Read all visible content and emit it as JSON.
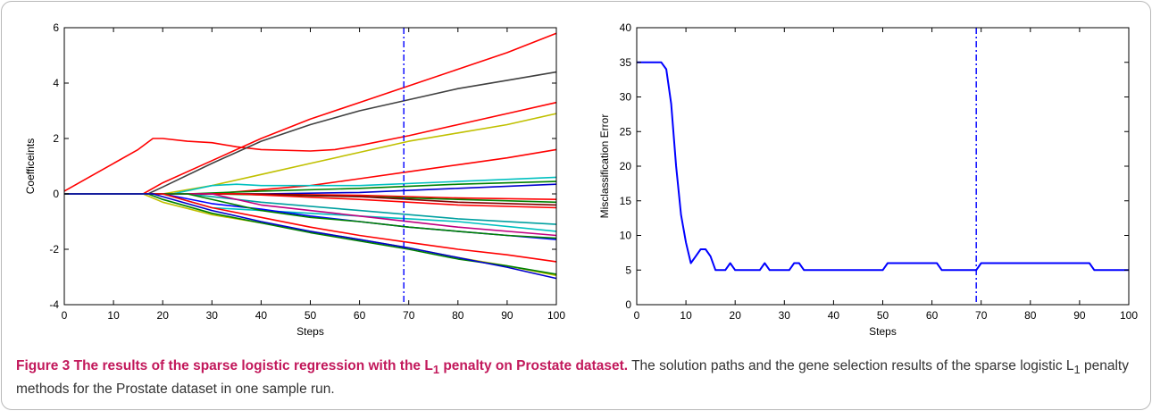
{
  "caption": {
    "title_pre": "Figure 3 The results of the sparse logistic regression with the L",
    "title_sub": "1",
    "title_post": " penalty on Prostate dataset.",
    "body_pre": " The solution paths and the gene selection results of the sparse logistic L",
    "body_sub": "1",
    "body_post": " penalty methods for the Prostate dataset in one sample run."
  },
  "chart_data": [
    {
      "type": "line",
      "title": "",
      "xlabel": "Steps",
      "ylabel": "Coefficeints",
      "xlim": [
        0,
        100
      ],
      "ylim": [
        -4,
        6
      ],
      "xticks": [
        0,
        10,
        20,
        30,
        40,
        50,
        60,
        70,
        80,
        90,
        100
      ],
      "yticks": [
        -4,
        -2,
        0,
        2,
        4,
        6
      ],
      "grid": false,
      "legend": "none",
      "vline": {
        "x": 69,
        "color": "#0000ff",
        "style": "dash-dot"
      },
      "series": [
        {
          "color": "#ff0000",
          "points": [
            [
              0,
              0.1
            ],
            [
              5,
              0.6
            ],
            [
              10,
              1.1
            ],
            [
              15,
              1.6
            ],
            [
              18,
              2.0
            ],
            [
              20,
              2.0
            ],
            [
              25,
              1.9
            ],
            [
              30,
              1.85
            ],
            [
              35,
              1.7
            ],
            [
              40,
              1.6
            ],
            [
              50,
              1.55
            ],
            [
              55,
              1.6
            ],
            [
              60,
              1.75
            ],
            [
              70,
              2.1
            ],
            [
              80,
              2.5
            ],
            [
              90,
              2.9
            ],
            [
              100,
              3.3
            ]
          ]
        },
        {
          "color": "#ff0000",
          "points": [
            [
              0,
              0
            ],
            [
              16,
              0
            ],
            [
              20,
              0.4
            ],
            [
              30,
              1.2
            ],
            [
              40,
              2.0
            ],
            [
              50,
              2.7
            ],
            [
              60,
              3.3
            ],
            [
              70,
              3.9
            ],
            [
              80,
              4.5
            ],
            [
              90,
              5.1
            ],
            [
              100,
              5.8
            ]
          ]
        },
        {
          "color": "#404040",
          "points": [
            [
              0,
              0
            ],
            [
              17,
              0
            ],
            [
              20,
              0.25
            ],
            [
              30,
              1.1
            ],
            [
              40,
              1.9
            ],
            [
              50,
              2.5
            ],
            [
              60,
              3.0
            ],
            [
              70,
              3.4
            ],
            [
              80,
              3.8
            ],
            [
              90,
              4.1
            ],
            [
              100,
              4.4
            ]
          ]
        },
        {
          "color": "#c0c000",
          "points": [
            [
              0,
              0
            ],
            [
              20,
              0
            ],
            [
              30,
              0.3
            ],
            [
              40,
              0.7
            ],
            [
              50,
              1.1
            ],
            [
              60,
              1.5
            ],
            [
              70,
              1.9
            ],
            [
              80,
              2.2
            ],
            [
              90,
              2.5
            ],
            [
              100,
              2.9
            ]
          ]
        },
        {
          "color": "#ff0000",
          "points": [
            [
              0,
              0
            ],
            [
              30,
              0
            ],
            [
              40,
              0.15
            ],
            [
              50,
              0.3
            ],
            [
              60,
              0.55
            ],
            [
              70,
              0.8
            ],
            [
              80,
              1.05
            ],
            [
              90,
              1.3
            ],
            [
              100,
              1.6
            ]
          ]
        },
        {
          "color": "#00c0c0",
          "points": [
            [
              0,
              0
            ],
            [
              22,
              0
            ],
            [
              30,
              0.3
            ],
            [
              35,
              0.35
            ],
            [
              40,
              0.3
            ],
            [
              60,
              0.3
            ],
            [
              80,
              0.45
            ],
            [
              100,
              0.6
            ]
          ]
        },
        {
          "color": "#008000",
          "points": [
            [
              0,
              0
            ],
            [
              25,
              0
            ],
            [
              40,
              0.1
            ],
            [
              60,
              0.2
            ],
            [
              80,
              0.35
            ],
            [
              100,
              0.45
            ]
          ]
        },
        {
          "color": "#0000cc",
          "points": [
            [
              0,
              0
            ],
            [
              40,
              0
            ],
            [
              60,
              0.05
            ],
            [
              80,
              0.2
            ],
            [
              100,
              0.35
            ]
          ]
        },
        {
          "color": "#ff0000",
          "points": [
            [
              0,
              0
            ],
            [
              35,
              0
            ],
            [
              60,
              -0.05
            ],
            [
              80,
              -0.15
            ],
            [
              100,
              -0.2
            ]
          ]
        },
        {
          "color": "#008000",
          "points": [
            [
              0,
              0
            ],
            [
              30,
              0
            ],
            [
              60,
              -0.1
            ],
            [
              80,
              -0.2
            ],
            [
              100,
              -0.3
            ]
          ]
        },
        {
          "color": "#800000",
          "points": [
            [
              0,
              0
            ],
            [
              40,
              0
            ],
            [
              60,
              -0.1
            ],
            [
              80,
              -0.3
            ],
            [
              100,
              -0.4
            ]
          ]
        },
        {
          "color": "#ff0000",
          "points": [
            [
              0,
              0
            ],
            [
              35,
              0
            ],
            [
              60,
              -0.2
            ],
            [
              80,
              -0.4
            ],
            [
              100,
              -0.5
            ]
          ]
        },
        {
          "color": "#00a0a0",
          "points": [
            [
              0,
              0
            ],
            [
              25,
              0
            ],
            [
              40,
              -0.3
            ],
            [
              60,
              -0.6
            ],
            [
              80,
              -0.9
            ],
            [
              100,
              -1.1
            ]
          ]
        },
        {
          "color": "#00c0c0",
          "points": [
            [
              0,
              0
            ],
            [
              20,
              0
            ],
            [
              30,
              -0.5
            ],
            [
              40,
              -0.6
            ],
            [
              60,
              -0.8
            ],
            [
              80,
              -1.0
            ],
            [
              100,
              -1.35
            ]
          ]
        },
        {
          "color": "#c00080",
          "points": [
            [
              0,
              0
            ],
            [
              30,
              0
            ],
            [
              40,
              -0.4
            ],
            [
              60,
              -0.8
            ],
            [
              80,
              -1.2
            ],
            [
              100,
              -1.5
            ]
          ]
        },
        {
          "color": "#0000ff",
          "points": [
            [
              0,
              0
            ],
            [
              20,
              0
            ],
            [
              30,
              -0.35
            ],
            [
              40,
              -0.55
            ],
            [
              50,
              -0.8
            ],
            [
              60,
              -1.0
            ],
            [
              70,
              -1.2
            ],
            [
              80,
              -1.35
            ],
            [
              90,
              -1.5
            ],
            [
              100,
              -1.65
            ]
          ]
        },
        {
          "color": "#008000",
          "points": [
            [
              0,
              0
            ],
            [
              25,
              0
            ],
            [
              40,
              -0.6
            ],
            [
              50,
              -0.85
            ],
            [
              60,
              -1.0
            ],
            [
              70,
              -1.2
            ],
            [
              80,
              -1.35
            ],
            [
              90,
              -1.5
            ],
            [
              100,
              -1.6
            ]
          ]
        },
        {
          "color": "#ff0000",
          "points": [
            [
              0,
              0
            ],
            [
              20,
              0
            ],
            [
              30,
              -0.5
            ],
            [
              40,
              -0.85
            ],
            [
              50,
              -1.2
            ],
            [
              60,
              -1.5
            ],
            [
              70,
              -1.75
            ],
            [
              80,
              -2.0
            ],
            [
              90,
              -2.2
            ],
            [
              100,
              -2.45
            ]
          ]
        },
        {
          "color": "#c0c000",
          "points": [
            [
              0,
              0
            ],
            [
              16,
              0
            ],
            [
              20,
              -0.3
            ],
            [
              30,
              -0.75
            ],
            [
              40,
              -1.05
            ],
            [
              50,
              -1.35
            ],
            [
              60,
              -1.65
            ],
            [
              70,
              -1.95
            ],
            [
              80,
              -2.3
            ],
            [
              90,
              -2.6
            ],
            [
              100,
              -2.95
            ]
          ]
        },
        {
          "color": "#008000",
          "points": [
            [
              0,
              0
            ],
            [
              17,
              0
            ],
            [
              20,
              -0.2
            ],
            [
              30,
              -0.7
            ],
            [
              40,
              -1.05
            ],
            [
              50,
              -1.4
            ],
            [
              60,
              -1.7
            ],
            [
              70,
              -2.0
            ],
            [
              80,
              -2.35
            ],
            [
              90,
              -2.6
            ],
            [
              100,
              -2.9
            ]
          ]
        },
        {
          "color": "#0000cc",
          "points": [
            [
              0,
              0
            ],
            [
              18,
              0
            ],
            [
              20,
              -0.1
            ],
            [
              30,
              -0.6
            ],
            [
              40,
              -1.0
            ],
            [
              50,
              -1.35
            ],
            [
              60,
              -1.65
            ],
            [
              70,
              -1.95
            ],
            [
              80,
              -2.3
            ],
            [
              90,
              -2.65
            ],
            [
              100,
              -3.05
            ]
          ]
        }
      ]
    },
    {
      "type": "line",
      "title": "",
      "xlabel": "Steps",
      "ylabel": "Misclassification Error",
      "xlim": [
        0,
        100
      ],
      "ylim": [
        0,
        40
      ],
      "xticks": [
        0,
        10,
        20,
        30,
        40,
        50,
        60,
        70,
        80,
        90,
        100
      ],
      "yticks": [
        0,
        5,
        10,
        15,
        20,
        25,
        30,
        35,
        40
      ],
      "grid": false,
      "legend": "none",
      "vline": {
        "x": 69,
        "color": "#0000ff",
        "style": "dash-dot"
      },
      "series": [
        {
          "color": "#0000ff",
          "points": [
            [
              0,
              35
            ],
            [
              5,
              35
            ],
            [
              6,
              34
            ],
            [
              7,
              29
            ],
            [
              8,
              20
            ],
            [
              9,
              13
            ],
            [
              10,
              9
            ],
            [
              11,
              6
            ],
            [
              12,
              7
            ],
            [
              13,
              8
            ],
            [
              14,
              8
            ],
            [
              15,
              7
            ],
            [
              16,
              5
            ],
            [
              18,
              5
            ],
            [
              19,
              6
            ],
            [
              20,
              5
            ],
            [
              25,
              5
            ],
            [
              26,
              6
            ],
            [
              27,
              5
            ],
            [
              31,
              5
            ],
            [
              32,
              6
            ],
            [
              33,
              6
            ],
            [
              34,
              5
            ],
            [
              50,
              5
            ],
            [
              51,
              6
            ],
            [
              61,
              6
            ],
            [
              62,
              5
            ],
            [
              69,
              5
            ],
            [
              70,
              6
            ],
            [
              92,
              6
            ],
            [
              93,
              5
            ],
            [
              100,
              5
            ]
          ]
        }
      ]
    }
  ]
}
